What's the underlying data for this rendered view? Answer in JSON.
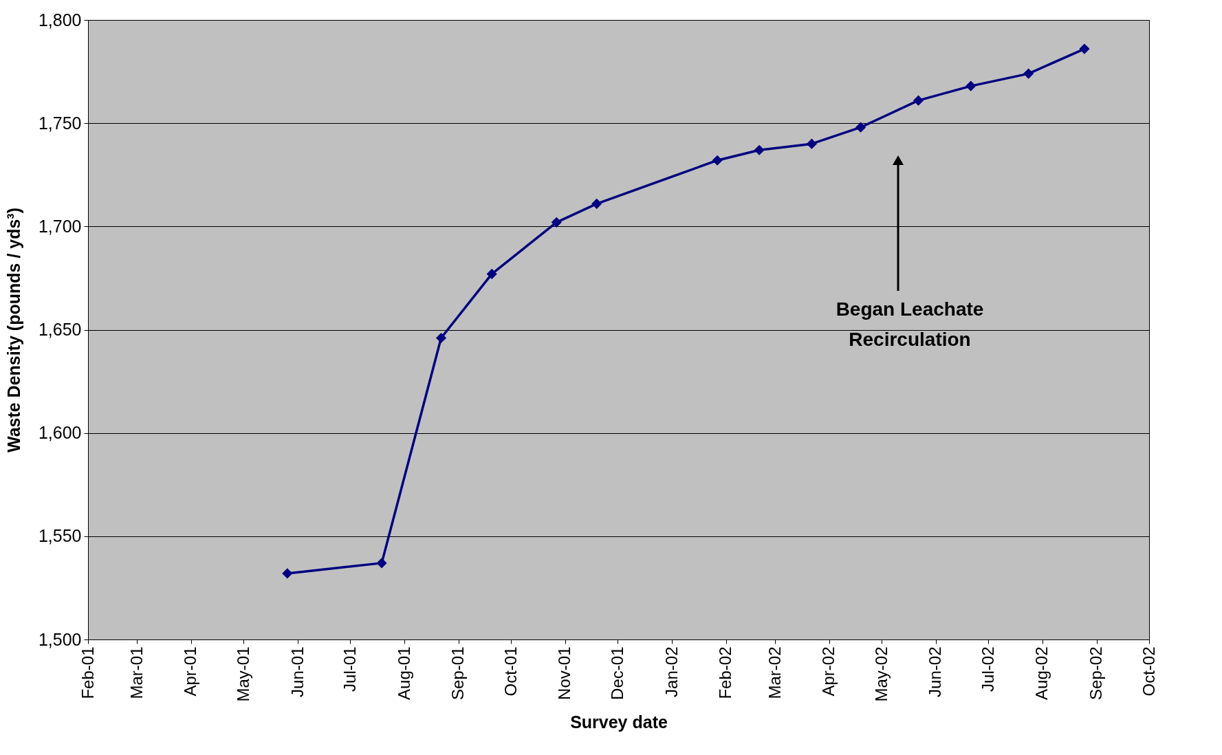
{
  "chart_data": {
    "type": "line",
    "xlabel": "Survey date",
    "ylabel": "Waste Density (pounds / yds³)",
    "x": [
      "2001-05-26",
      "2001-07-19",
      "2001-08-22",
      "2001-09-20",
      "2001-10-27",
      "2001-11-19",
      "2002-01-27",
      "2002-02-20",
      "2002-03-22",
      "2002-04-19",
      "2002-05-22",
      "2002-06-21",
      "2002-07-24",
      "2002-08-25"
    ],
    "series": [
      {
        "color": "#000080",
        "values": [
          1532,
          1537,
          1646,
          1677,
          1702,
          1711,
          1732,
          1737,
          1740,
          1748,
          1761,
          1768,
          1774,
          1786
        ]
      }
    ],
    "xlim": [
      "2001-02-01",
      "2002-10-01"
    ],
    "xticks": [
      {
        "value": "2001-02-01",
        "label": "Feb-01"
      },
      {
        "value": "2001-03-01",
        "label": "Mar-01"
      },
      {
        "value": "2001-04-01",
        "label": "Apr-01"
      },
      {
        "value": "2001-05-01",
        "label": "May-01"
      },
      {
        "value": "2001-06-01",
        "label": "Jun-01"
      },
      {
        "value": "2001-07-01",
        "label": "Jul-01"
      },
      {
        "value": "2001-08-01",
        "label": "Aug-01"
      },
      {
        "value": "2001-09-01",
        "label": "Sep-01"
      },
      {
        "value": "2001-10-01",
        "label": "Oct-01"
      },
      {
        "value": "2001-11-01",
        "label": "Nov-01"
      },
      {
        "value": "2001-12-01",
        "label": "Dec-01"
      },
      {
        "value": "2002-01-01",
        "label": "Jan-02"
      },
      {
        "value": "2002-02-01",
        "label": "Feb-02"
      },
      {
        "value": "2002-03-01",
        "label": "Mar-02"
      },
      {
        "value": "2002-04-01",
        "label": "Apr-02"
      },
      {
        "value": "2002-05-01",
        "label": "May-02"
      },
      {
        "value": "2002-06-01",
        "label": "Jun-02"
      },
      {
        "value": "2002-07-01",
        "label": "Jul-02"
      },
      {
        "value": "2002-08-01",
        "label": "Aug-02"
      },
      {
        "value": "2002-09-01",
        "label": "Sep-02"
      },
      {
        "value": "2002-10-01",
        "label": "Oct-02"
      }
    ],
    "ylim": [
      1500,
      1800
    ],
    "yticks": [
      {
        "value": 1500,
        "label": "1,500"
      },
      {
        "value": 1550,
        "label": "1,550"
      },
      {
        "value": 1600,
        "label": "1,600"
      },
      {
        "value": 1650,
        "label": "1,650"
      },
      {
        "value": 1700,
        "label": "1,700"
      },
      {
        "value": 1750,
        "label": "1,750"
      },
      {
        "value": 1800,
        "label": "1,800"
      }
    ],
    "annotations": [
      "Began Leachate Recirculation"
    ],
    "grid": "y",
    "legend": false,
    "marker": "diamond",
    "line_style": "solid"
  }
}
